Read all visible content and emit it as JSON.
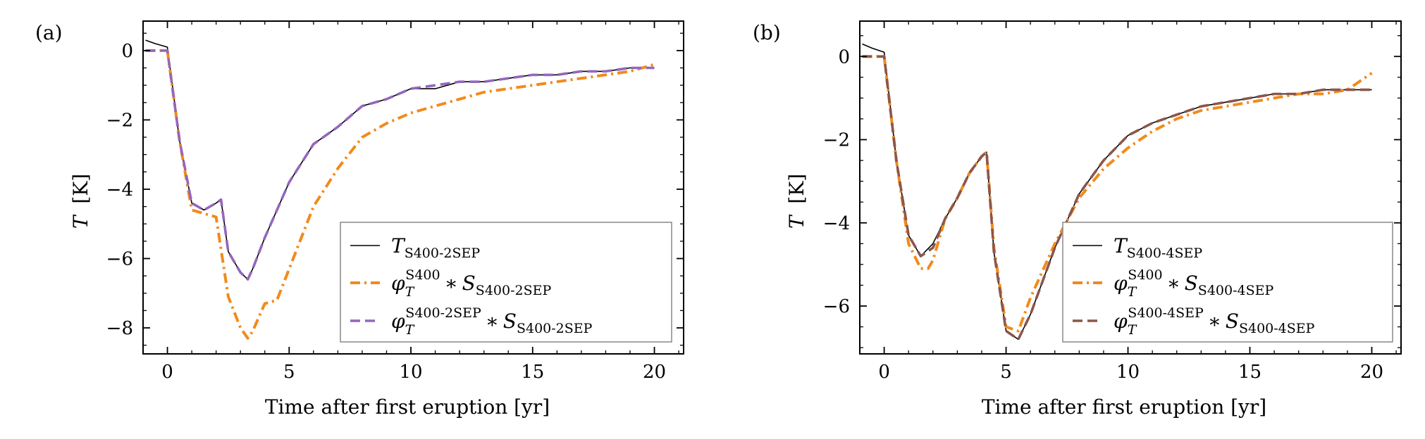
{
  "figure": {
    "panels": [
      {
        "tag": "(a)",
        "xlabel": "Time after first eruption [yr]",
        "ylabel_var": "T",
        "ylabel_unit": "[K]"
      },
      {
        "tag": "(b)",
        "xlabel": "Time after first eruption [yr]",
        "ylabel_var": "T",
        "ylabel_unit": "[K]"
      }
    ]
  },
  "colors": {
    "black": "#000000",
    "orange": "#f28a1b",
    "purple": "#9467bd",
    "brown": "#8c564b"
  },
  "chart_data": [
    {
      "type": "line",
      "panel": "(a)",
      "xlabel": "Time after first eruption [yr]",
      "ylabel": "T [K]",
      "xlim": [
        -1,
        21.2
      ],
      "ylim": [
        -8.75,
        0.85
      ],
      "xticks": [
        "0",
        "5",
        "10",
        "15",
        "20"
      ],
      "yticks": [
        "0",
        "−2",
        "−4",
        "−6",
        "−8"
      ],
      "grid": false,
      "legend_position": "lower-right",
      "series": [
        {
          "name": "T_{S400-2SEP}",
          "legend": {
            "main": "T",
            "sub": "S400-2SEP",
            "sup": "",
            "sub2": ""
          },
          "style": "solid",
          "color": "#000000",
          "x": [
            -0.9,
            -0.5,
            0,
            0.5,
            1,
            1.5,
            2,
            2.2,
            2.5,
            3,
            3.3,
            3.5,
            4,
            5,
            6,
            7,
            8,
            9,
            10,
            11,
            12,
            13,
            14,
            15,
            16,
            17,
            18,
            19,
            20
          ],
          "y": [
            0.3,
            0.2,
            0.1,
            -2.6,
            -4.4,
            -4.6,
            -4.4,
            -4.3,
            -5.8,
            -6.4,
            -6.6,
            -6.3,
            -5.4,
            -3.8,
            -2.7,
            -2.2,
            -1.6,
            -1.4,
            -1.1,
            -1.1,
            -0.9,
            -0.9,
            -0.8,
            -0.7,
            -0.7,
            -0.6,
            -0.6,
            -0.5,
            -0.5
          ]
        },
        {
          "name": "φ_T^{S400} * S_{S400-2SEP}",
          "legend": {
            "main": "φ",
            "sub": "T",
            "sup": "S400",
            "sub2": "S400-2SEP"
          },
          "style": "dashdot",
          "color": "#f28a1b",
          "x": [
            -0.9,
            0,
            0.5,
            1,
            1.5,
            2,
            2.5,
            3,
            3.3,
            3.5,
            4,
            4.5,
            5,
            6,
            7,
            8,
            9,
            10,
            11,
            12,
            13,
            14,
            15,
            16,
            17,
            18,
            19,
            20
          ],
          "y": [
            0,
            0,
            -2.6,
            -4.6,
            -4.7,
            -4.8,
            -7.1,
            -8.0,
            -8.3,
            -8.1,
            -7.3,
            -7.2,
            -6.3,
            -4.5,
            -3.4,
            -2.5,
            -2.1,
            -1.8,
            -1.6,
            -1.4,
            -1.2,
            -1.1,
            -1.0,
            -0.9,
            -0.8,
            -0.7,
            -0.6,
            -0.4
          ]
        },
        {
          "name": "φ_T^{S400-2SEP} * S_{S400-2SEP}",
          "legend": {
            "main": "φ",
            "sub": "T",
            "sup": "S400-2SEP",
            "sub2": "S400-2SEP"
          },
          "style": "dashed",
          "color": "#9467bd",
          "x": [
            -0.9,
            0,
            0.5,
            1,
            1.5,
            2,
            2.2,
            2.5,
            3,
            3.3,
            3.5,
            4,
            5,
            6,
            7,
            8,
            9,
            10,
            11,
            12,
            13,
            14,
            15,
            16,
            17,
            18,
            19,
            20
          ],
          "y": [
            0,
            0,
            -2.6,
            -4.4,
            -4.6,
            -4.4,
            -4.3,
            -5.8,
            -6.4,
            -6.6,
            -6.3,
            -5.4,
            -3.8,
            -2.7,
            -2.2,
            -1.6,
            -1.4,
            -1.1,
            -1.0,
            -0.9,
            -0.9,
            -0.8,
            -0.7,
            -0.7,
            -0.6,
            -0.6,
            -0.5,
            -0.5
          ]
        }
      ]
    },
    {
      "type": "line",
      "panel": "(b)",
      "xlabel": "Time after first eruption [yr]",
      "ylabel": "T [K]",
      "xlim": [
        -1,
        21.2
      ],
      "ylim": [
        -7.15,
        0.85
      ],
      "xticks": [
        "0",
        "5",
        "10",
        "15",
        "20"
      ],
      "yticks": [
        "0",
        "−2",
        "−4",
        "−6"
      ],
      "grid": false,
      "legend_position": "lower-right",
      "series": [
        {
          "name": "T_{S400-4SEP}",
          "legend": {
            "main": "T",
            "sub": "S400-4SEP",
            "sup": "",
            "sub2": ""
          },
          "style": "solid",
          "color": "#000000",
          "x": [
            -0.9,
            -0.5,
            0,
            0.5,
            1,
            1.5,
            2,
            2.5,
            3,
            3.5,
            4,
            4.2,
            4.5,
            5,
            5.5,
            6,
            7,
            8,
            9,
            10,
            11,
            12,
            13,
            14,
            15,
            16,
            17,
            18,
            19,
            20
          ],
          "y": [
            0.3,
            0.2,
            0.1,
            -2.5,
            -4.3,
            -4.8,
            -4.5,
            -3.9,
            -3.4,
            -2.8,
            -2.4,
            -2.3,
            -4.7,
            -6.6,
            -6.8,
            -6.2,
            -4.6,
            -3.3,
            -2.5,
            -1.9,
            -1.6,
            -1.4,
            -1.2,
            -1.1,
            -1.0,
            -0.9,
            -0.9,
            -0.8,
            -0.8,
            -0.8
          ]
        },
        {
          "name": "φ_T^{S400} * S_{S400-4SEP}",
          "legend": {
            "main": "φ",
            "sub": "T",
            "sup": "S400",
            "sub2": "S400-4SEP"
          },
          "style": "dashdot",
          "color": "#f28a1b",
          "x": [
            -0.9,
            0,
            0.5,
            1,
            1.5,
            1.8,
            2,
            2.5,
            3,
            3.5,
            4,
            4.2,
            4.5,
            5,
            5.5,
            6,
            7,
            8,
            9,
            10,
            11,
            12,
            13,
            14,
            15,
            16,
            17,
            18,
            19,
            20
          ],
          "y": [
            0,
            0,
            -2.5,
            -4.5,
            -5.1,
            -5.1,
            -4.9,
            -3.9,
            -3.4,
            -2.8,
            -2.4,
            -2.3,
            -4.6,
            -6.5,
            -6.6,
            -5.8,
            -4.5,
            -3.4,
            -2.7,
            -2.2,
            -1.8,
            -1.5,
            -1.3,
            -1.2,
            -1.1,
            -1.0,
            -0.9,
            -0.9,
            -0.8,
            -0.4
          ]
        },
        {
          "name": "φ_T^{S400-4SEP} * S_{S400-4SEP}",
          "legend": {
            "main": "φ",
            "sub": "T",
            "sup": "S400-4SEP",
            "sub2": "S400-4SEP"
          },
          "style": "dashed",
          "color": "#8c564b",
          "x": [
            -0.9,
            0,
            0.5,
            1,
            1.5,
            2,
            2.5,
            3,
            3.5,
            4,
            4.2,
            4.5,
            5,
            5.5,
            6,
            7,
            8,
            9,
            10,
            11,
            12,
            13,
            14,
            15,
            16,
            17,
            18,
            19,
            20
          ],
          "y": [
            0,
            0,
            -2.5,
            -4.3,
            -4.8,
            -4.6,
            -3.9,
            -3.4,
            -2.8,
            -2.4,
            -2.3,
            -4.7,
            -6.6,
            -6.8,
            -6.2,
            -4.6,
            -3.3,
            -2.5,
            -1.9,
            -1.6,
            -1.4,
            -1.2,
            -1.1,
            -1.0,
            -0.9,
            -0.9,
            -0.8,
            -0.8,
            -0.8
          ]
        }
      ]
    }
  ]
}
